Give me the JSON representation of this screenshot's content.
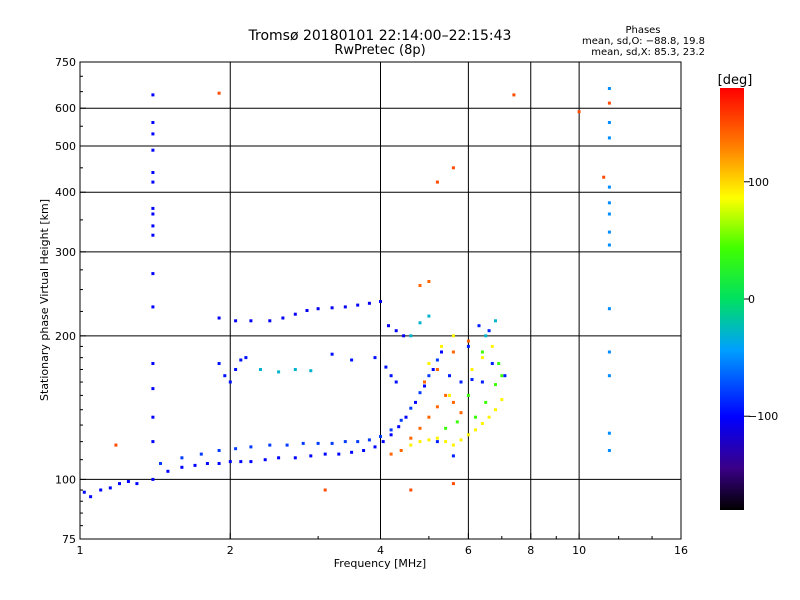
{
  "chart_data": {
    "type": "scatter",
    "title": "Tromsø 20180101 22:14:00–22:15:43",
    "subtitle": "RwPretec (8p)",
    "xlabel": "Frequency [MHz]",
    "ylabel": "Stationary phase Virtual Height [km]",
    "x_scale": "log",
    "y_scale": "log",
    "xlim": [
      1,
      16
    ],
    "ylim": [
      75,
      750
    ],
    "x_ticks": [
      {
        "value": 1,
        "label": "1"
      },
      {
        "value": 2,
        "label": "2"
      },
      {
        "value": 4,
        "label": "4"
      },
      {
        "value": 6,
        "label": "6"
      },
      {
        "value": 8,
        "label": "8"
      },
      {
        "value": 10,
        "label": "10"
      },
      {
        "value": 16,
        "label": "16"
      }
    ],
    "y_ticks": [
      {
        "value": 75,
        "label": "75"
      },
      {
        "value": 100,
        "label": "100"
      },
      {
        "value": 200,
        "label": "200"
      },
      {
        "value": 300,
        "label": "300"
      },
      {
        "value": 400,
        "label": "400"
      },
      {
        "value": 500,
        "label": "500"
      },
      {
        "value": 600,
        "label": "600"
      },
      {
        "value": 750,
        "label": "750"
      }
    ],
    "grid_x": [
      2,
      4,
      6,
      8,
      10
    ],
    "grid_y": [
      100,
      200,
      300,
      400,
      500,
      600
    ],
    "stats": {
      "heading": "Phases",
      "o_line": "mean, sd,O: −88.8, 19.8",
      "x_line": "mean, sd,X: 85.3, 23.2"
    },
    "colorbar": {
      "unit_label": "[deg]",
      "range": [
        -180,
        180
      ],
      "ticks": [
        {
          "value": 100,
          "label": "100"
        },
        {
          "value": 0,
          "label": "0"
        },
        {
          "value": -100,
          "label": "−100"
        }
      ]
    },
    "groups": [
      {
        "name": "low-o-trace",
        "phase": -100,
        "points": [
          [
            1.02,
            94
          ],
          [
            1.05,
            92
          ],
          [
            1.1,
            95
          ],
          [
            1.15,
            96
          ],
          [
            1.2,
            98
          ],
          [
            1.25,
            99
          ],
          [
            1.3,
            98
          ],
          [
            1.4,
            100
          ],
          [
            1.5,
            104
          ],
          [
            1.6,
            106
          ],
          [
            1.7,
            107
          ],
          [
            1.8,
            108
          ],
          [
            1.9,
            108
          ],
          [
            2.0,
            109
          ],
          [
            2.1,
            109
          ],
          [
            2.2,
            109
          ],
          [
            2.35,
            110
          ],
          [
            2.5,
            111
          ],
          [
            2.7,
            111
          ],
          [
            2.9,
            112
          ],
          [
            3.1,
            113
          ],
          [
            3.3,
            113
          ],
          [
            3.5,
            114
          ],
          [
            3.7,
            115
          ],
          [
            3.9,
            117
          ],
          [
            4.05,
            120
          ],
          [
            4.2,
            124
          ],
          [
            4.35,
            129
          ],
          [
            4.5,
            135
          ],
          [
            4.7,
            145
          ],
          [
            4.9,
            157
          ],
          [
            5.1,
            170
          ],
          [
            5.3,
            185
          ]
        ]
      },
      {
        "name": "low-x-trace",
        "phase": -80,
        "points": [
          [
            1.45,
            108
          ],
          [
            1.6,
            111
          ],
          [
            1.75,
            113
          ],
          [
            1.9,
            115
          ],
          [
            2.05,
            116
          ],
          [
            2.2,
            117
          ],
          [
            2.4,
            118
          ],
          [
            2.6,
            118
          ],
          [
            2.8,
            119
          ],
          [
            3.0,
            119
          ],
          [
            3.2,
            119
          ],
          [
            3.4,
            120
          ],
          [
            3.6,
            120
          ],
          [
            3.8,
            121
          ],
          [
            4.0,
            123
          ],
          [
            4.2,
            127
          ],
          [
            4.4,
            133
          ],
          [
            4.6,
            141
          ],
          [
            4.8,
            152
          ],
          [
            5.0,
            165
          ],
          [
            5.2,
            178
          ]
        ]
      },
      {
        "name": "upper-layer",
        "phase": -105,
        "points": [
          [
            1.9,
            218
          ],
          [
            2.05,
            215
          ],
          [
            2.2,
            215
          ],
          [
            2.4,
            215
          ],
          [
            2.55,
            218
          ],
          [
            2.7,
            222
          ],
          [
            2.85,
            226
          ],
          [
            3.0,
            228
          ],
          [
            3.2,
            229
          ],
          [
            3.4,
            230
          ],
          [
            3.6,
            232
          ],
          [
            3.8,
            234
          ],
          [
            4.0,
            236
          ],
          [
            4.15,
            210
          ],
          [
            4.3,
            205
          ],
          [
            4.45,
            200
          ]
        ]
      },
      {
        "name": "mid-cluster",
        "phase": -95,
        "points": [
          [
            1.9,
            175
          ],
          [
            1.95,
            165
          ],
          [
            2.0,
            160
          ],
          [
            2.05,
            170
          ],
          [
            2.1,
            178
          ],
          [
            2.15,
            180
          ],
          [
            3.2,
            183
          ],
          [
            3.5,
            178
          ],
          [
            3.9,
            180
          ],
          [
            4.1,
            172
          ],
          [
            4.2,
            165
          ],
          [
            4.3,
            160
          ]
        ]
      },
      {
        "name": "cyan-cluster",
        "phase": -30,
        "points": [
          [
            2.3,
            170
          ],
          [
            2.5,
            168
          ],
          [
            2.7,
            170
          ],
          [
            2.9,
            169
          ],
          [
            4.6,
            200
          ],
          [
            4.8,
            213
          ],
          [
            5.0,
            220
          ],
          [
            6.5,
            200
          ],
          [
            6.8,
            215
          ]
        ]
      },
      {
        "name": "f2-blob-yellow",
        "phase": 90,
        "points": [
          [
            4.6,
            118
          ],
          [
            4.8,
            120
          ],
          [
            5.0,
            121
          ],
          [
            5.2,
            122
          ],
          [
            5.4,
            120
          ],
          [
            5.6,
            118
          ],
          [
            5.8,
            121
          ],
          [
            6.0,
            124
          ],
          [
            6.2,
            127
          ],
          [
            6.4,
            131
          ],
          [
            6.6,
            135
          ],
          [
            6.8,
            140
          ],
          [
            7.0,
            147
          ],
          [
            5.5,
            150
          ],
          [
            5.8,
            160
          ],
          [
            6.1,
            170
          ],
          [
            6.4,
            180
          ],
          [
            6.7,
            190
          ],
          [
            5.0,
            175
          ],
          [
            5.3,
            190
          ],
          [
            5.6,
            200
          ]
        ]
      },
      {
        "name": "f2-blob-orange",
        "phase": 140,
        "points": [
          [
            4.2,
            113
          ],
          [
            4.4,
            115
          ],
          [
            4.6,
            122
          ],
          [
            4.8,
            128
          ],
          [
            5.0,
            135
          ],
          [
            5.2,
            142
          ],
          [
            5.4,
            150
          ],
          [
            5.6,
            145
          ],
          [
            5.8,
            138
          ],
          [
            4.9,
            160
          ],
          [
            5.2,
            170
          ],
          [
            5.6,
            185
          ],
          [
            6.0,
            195
          ],
          [
            4.8,
            255
          ],
          [
            5.0,
            260
          ]
        ]
      },
      {
        "name": "f2-blob-green",
        "phase": 40,
        "points": [
          [
            6.2,
            135
          ],
          [
            6.5,
            145
          ],
          [
            6.8,
            158
          ],
          [
            7.0,
            165
          ],
          [
            6.0,
            150
          ],
          [
            5.7,
            132
          ],
          [
            5.4,
            128
          ],
          [
            6.9,
            175
          ],
          [
            6.4,
            185
          ]
        ]
      },
      {
        "name": "f2-blob-blue",
        "phase": -90,
        "points": [
          [
            5.5,
            165
          ],
          [
            5.8,
            160
          ],
          [
            6.1,
            162
          ],
          [
            6.4,
            160
          ],
          [
            6.7,
            175
          ],
          [
            7.1,
            165
          ],
          [
            6.0,
            190
          ],
          [
            6.6,
            205
          ],
          [
            6.3,
            210
          ],
          [
            5.2,
            120
          ],
          [
            5.6,
            112
          ]
        ]
      },
      {
        "name": "vertical-1.4",
        "phase": -100,
        "points": [
          [
            1.4,
            640
          ],
          [
            1.4,
            560
          ],
          [
            1.4,
            530
          ],
          [
            1.4,
            490
          ],
          [
            1.4,
            440
          ],
          [
            1.4,
            420
          ],
          [
            1.4,
            370
          ],
          [
            1.4,
            360
          ],
          [
            1.4,
            340
          ],
          [
            1.4,
            325
          ],
          [
            1.4,
            270
          ],
          [
            1.4,
            230
          ],
          [
            1.4,
            175
          ],
          [
            1.4,
            155
          ],
          [
            1.4,
            135
          ],
          [
            1.4,
            120
          ]
        ]
      },
      {
        "name": "vertical-11.5",
        "phase": -50,
        "points": [
          [
            11.5,
            660
          ],
          [
            11.5,
            560
          ],
          [
            11.5,
            520
          ],
          [
            11.5,
            410
          ],
          [
            11.5,
            380
          ],
          [
            11.5,
            360
          ],
          [
            11.5,
            330
          ],
          [
            11.5,
            310
          ],
          [
            11.5,
            228
          ],
          [
            11.5,
            185
          ],
          [
            11.5,
            165
          ],
          [
            11.5,
            125
          ],
          [
            11.5,
            115
          ]
        ]
      },
      {
        "name": "scattered-warm",
        "phase": 150,
        "points": [
          [
            1.9,
            645
          ],
          [
            5.6,
            450
          ],
          [
            5.2,
            420
          ],
          [
            7.4,
            640
          ],
          [
            10.0,
            590
          ],
          [
            11.2,
            430
          ],
          [
            11.5,
            615
          ],
          [
            3.1,
            95
          ],
          [
            4.6,
            95
          ],
          [
            5.6,
            98
          ],
          [
            1.18,
            118
          ]
        ]
      }
    ]
  }
}
